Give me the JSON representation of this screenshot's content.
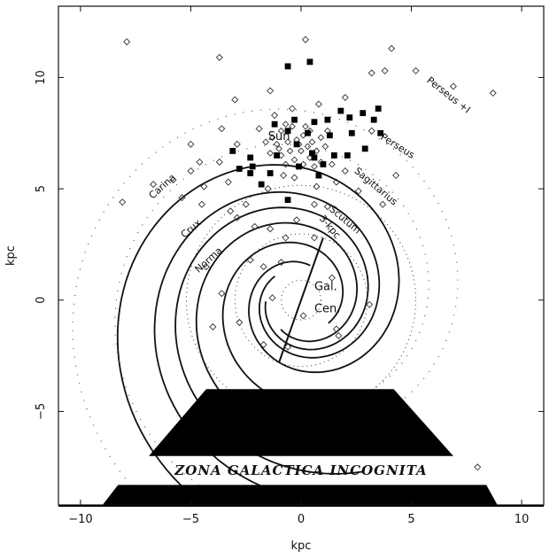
{
  "chart_data": {
    "type": "scatter",
    "title": "",
    "xlabel": "kpc",
    "ylabel": "kpc",
    "xlim": [
      -11,
      11
    ],
    "ylim": [
      -9.2,
      13.2
    ],
    "xticks": [
      -10,
      -5,
      0,
      5,
      10
    ],
    "yticks": [
      -5,
      0,
      5,
      10
    ],
    "xtick_labels": [
      "−10",
      "−5",
      "0",
      "5",
      "10"
    ],
    "ytick_labels": [
      "−5",
      "0",
      "5",
      "10"
    ],
    "grid": false,
    "arm_labels": [
      {
        "text": "Perseus +I",
        "x": 6.6,
        "y": 9.1,
        "rotate": 38
      },
      {
        "text": "Perseus",
        "x": 4.3,
        "y": 6.8,
        "rotate": 32
      },
      {
        "text": "Sagittarius",
        "x": 3.3,
        "y": 5.0,
        "rotate": 40
      },
      {
        "text": "Scutum",
        "x": 1.9,
        "y": 3.5,
        "rotate": 40
      },
      {
        "text": "3-kpc",
        "x": 1.2,
        "y": 3.2,
        "rotate": 50
      },
      {
        "text": "Carina",
        "x": -6.2,
        "y": 5.0,
        "rotate": -42
      },
      {
        "text": "Crux",
        "x": -4.9,
        "y": 3.1,
        "rotate": -40
      },
      {
        "text": "Norma",
        "x": -4.1,
        "y": 1.7,
        "rotate": -42
      }
    ],
    "sun": {
      "text": "Sun",
      "x": -1.0,
      "y": 7.2
    },
    "center": {
      "line1": "Gal.",
      "line2": "Cen."
    },
    "zona": "ZONA GALACTICA INCOGNITA",
    "filled_squares": [
      [
        -0.6,
        10.5
      ],
      [
        0.4,
        10.7
      ],
      [
        2.2,
        8.2
      ],
      [
        2.8,
        8.4
      ],
      [
        3.5,
        8.6
      ],
      [
        3.3,
        8.1
      ],
      [
        3.6,
        7.5
      ],
      [
        1.8,
        8.5
      ],
      [
        1.2,
        8.1
      ],
      [
        0.6,
        8.0
      ],
      [
        -0.3,
        8.1
      ],
      [
        -0.6,
        7.6
      ],
      [
        -1.2,
        7.9
      ],
      [
        -0.2,
        7.0
      ],
      [
        0.5,
        6.6
      ],
      [
        1.5,
        6.5
      ],
      [
        2.1,
        6.5
      ],
      [
        2.9,
        6.8
      ],
      [
        -0.1,
        6.0
      ],
      [
        0.6,
        6.4
      ],
      [
        -1.4,
        5.7
      ],
      [
        -2.2,
        6.0
      ],
      [
        -1.8,
        5.2
      ],
      [
        -2.8,
        5.9
      ],
      [
        -3.1,
        6.7
      ],
      [
        -2.3,
        6.4
      ],
      [
        -2.3,
        5.7
      ],
      [
        -0.6,
        4.5
      ],
      [
        0.8,
        5.6
      ],
      [
        1.0,
        6.1
      ],
      [
        1.3,
        7.4
      ],
      [
        2.3,
        7.5
      ],
      [
        -1.1,
        6.5
      ],
      [
        0.3,
        7.5
      ]
    ],
    "open_diamonds": [
      [
        -7.9,
        11.6
      ],
      [
        -3.7,
        10.9
      ],
      [
        0.2,
        11.7
      ],
      [
        3.2,
        10.2
      ],
      [
        3.8,
        10.3
      ],
      [
        5.2,
        10.3
      ],
      [
        6.9,
        9.6
      ],
      [
        8.7,
        9.3
      ],
      [
        4.1,
        11.3
      ],
      [
        -3.0,
        9.0
      ],
      [
        -3.6,
        7.7
      ],
      [
        -5.0,
        7.0
      ],
      [
        -5.8,
        5.4
      ],
      [
        -6.7,
        5.2
      ],
      [
        -8.1,
        4.4
      ],
      [
        -5.4,
        4.6
      ],
      [
        -4.5,
        4.3
      ],
      [
        -3.2,
        4.0
      ],
      [
        -2.9,
        3.7
      ],
      [
        -2.1,
        3.3
      ],
      [
        -1.4,
        3.2
      ],
      [
        -0.7,
        2.8
      ],
      [
        0.6,
        2.8
      ],
      [
        -2.3,
        1.8
      ],
      [
        -1.7,
        1.5
      ],
      [
        -0.9,
        1.7
      ],
      [
        -4.3,
        1.5
      ],
      [
        -3.6,
        0.3
      ],
      [
        -4.0,
        -1.2
      ],
      [
        -2.8,
        -1.0
      ],
      [
        0.1,
        -0.7
      ],
      [
        -1.3,
        0.1
      ],
      [
        1.4,
        1.0
      ],
      [
        3.1,
        -0.2
      ],
      [
        1.6,
        -1.3
      ],
      [
        -0.6,
        -2.1
      ],
      [
        -1.7,
        -2.0
      ],
      [
        1.7,
        -1.6
      ],
      [
        8.0,
        -7.5
      ],
      [
        -1.5,
        5.0
      ],
      [
        -0.8,
        5.6
      ],
      [
        -2.5,
        4.3
      ],
      [
        2.0,
        5.8
      ],
      [
        1.6,
        5.3
      ],
      [
        2.6,
        4.9
      ],
      [
        3.7,
        4.3
      ],
      [
        4.3,
        5.6
      ],
      [
        -4.4,
        5.1
      ],
      [
        -3.3,
        5.3
      ],
      [
        -4.6,
        6.2
      ],
      [
        -5.0,
        5.8
      ],
      [
        -3.7,
        6.2
      ],
      [
        -2.9,
        7.0
      ],
      [
        -1.9,
        7.7
      ],
      [
        -1.2,
        8.3
      ],
      [
        -0.4,
        8.6
      ],
      [
        0.8,
        8.8
      ],
      [
        2.0,
        9.1
      ],
      [
        -1.4,
        9.4
      ],
      [
        3.2,
        7.6
      ],
      [
        0.6,
        4.3
      ],
      [
        -0.2,
        3.6
      ],
      [
        1.2,
        4.2
      ],
      [
        -0.3,
        5.5
      ],
      [
        0.7,
        5.1
      ]
    ],
    "sun_cluster": [
      [
        -0.9,
        7.6
      ],
      [
        -0.4,
        7.8
      ],
      [
        0.1,
        7.4
      ],
      [
        0.5,
        7.1
      ],
      [
        0.9,
        7.3
      ],
      [
        -1.1,
        7.0
      ],
      [
        -0.6,
        7.1
      ],
      [
        -0.2,
        7.2
      ],
      [
        0.3,
        6.9
      ],
      [
        0.7,
        6.7
      ],
      [
        -0.9,
        6.5
      ],
      [
        -0.5,
        6.7
      ],
      [
        0.0,
        6.7
      ],
      [
        0.4,
        6.4
      ],
      [
        -1.3,
        7.3
      ],
      [
        -1.0,
        6.8
      ],
      [
        0.2,
        7.8
      ],
      [
        -0.7,
        7.9
      ],
      [
        -0.3,
        6.3
      ],
      [
        0.1,
        6.1
      ],
      [
        0.6,
        6.0
      ],
      [
        1.1,
        6.9
      ],
      [
        1.2,
        7.6
      ],
      [
        -1.4,
        6.6
      ],
      [
        -0.7,
        6.1
      ],
      [
        0.9,
        6.2
      ],
      [
        1.4,
        6.1
      ],
      [
        -1.6,
        7.1
      ],
      [
        -0.1,
        7.0
      ],
      [
        0.4,
        7.6
      ]
    ]
  }
}
